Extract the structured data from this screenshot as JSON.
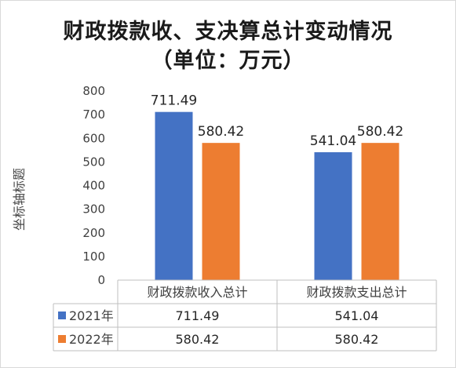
{
  "chart_data": {
    "type": "bar",
    "title_line1": "财政拨款收、支决算总计变动情况",
    "title_line2": "（单位：万元）",
    "ylabel": "坐标轴标题",
    "categories": [
      "财政拨款收入总计",
      "财政拨款支出总计"
    ],
    "series": [
      {
        "name": "2021年",
        "values": [
          711.49,
          541.04
        ],
        "labels": [
          "711.49",
          "541.04"
        ],
        "color": "#4472c4"
      },
      {
        "name": "2022年",
        "values": [
          580.42,
          580.42
        ],
        "labels": [
          "580.42",
          "580.42"
        ],
        "color": "#ed7d31"
      }
    ],
    "ylim": [
      0,
      800
    ],
    "yticks": [
      0,
      100,
      200,
      300,
      400,
      500,
      600,
      700,
      800
    ],
    "data_table": true,
    "grid": false
  }
}
